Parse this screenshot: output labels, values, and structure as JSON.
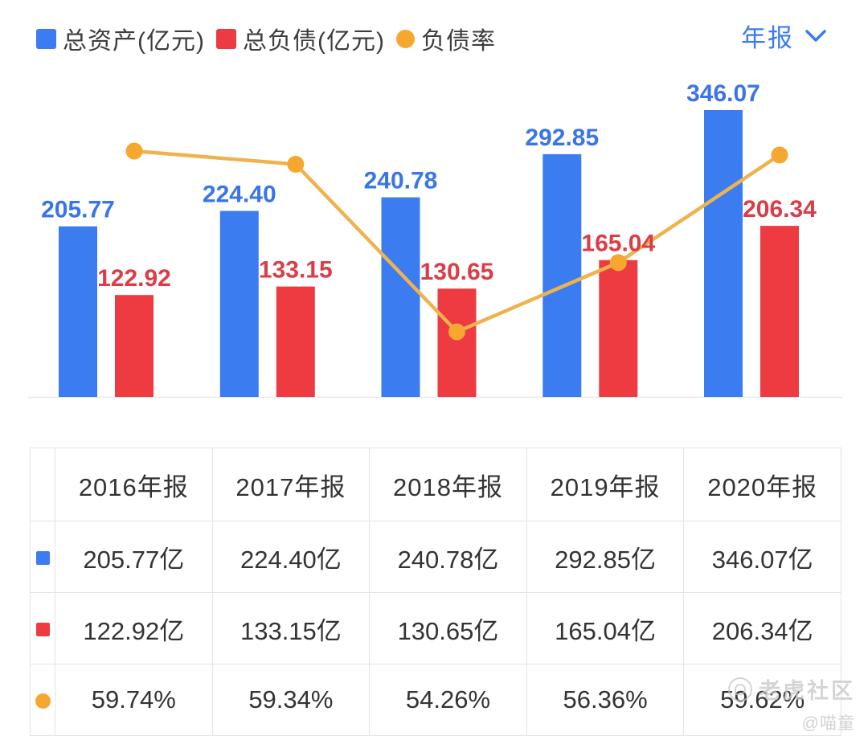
{
  "colors": {
    "assets_blue": "#3b7cf0",
    "liabilities_red": "#ee3b42",
    "ratio_orange": "#f6a72f",
    "ratio_line": "#eeb34e",
    "assets_label": "#3a75e8",
    "liabilities_label": "#dc3c45",
    "axis_line": "#e8e8e8"
  },
  "legend": {
    "items": [
      {
        "key": "assets",
        "label": "总资产(亿元)",
        "shape": "square",
        "color": "#3b7cf0"
      },
      {
        "key": "liabilities",
        "label": "总负债(亿元)",
        "shape": "square",
        "color": "#ee3b42"
      },
      {
        "key": "debt-ratio",
        "label": "负债率",
        "shape": "circle",
        "color": "#f6a72f"
      }
    ]
  },
  "period_selector": {
    "label": "年报"
  },
  "chart_data": {
    "type": "bar+line",
    "categories": [
      "2016年报",
      "2017年报",
      "2018年报",
      "2019年报",
      "2020年报"
    ],
    "category_years": [
      "2016",
      "2017",
      "2018",
      "2019",
      "2020"
    ],
    "series": [
      {
        "name": "总资产(亿元)",
        "key": "assets",
        "type": "bar",
        "unit": "亿元",
        "color": "#3b7cf0",
        "label_color": "#3a75e8",
        "values": [
          205.77,
          224.4,
          240.78,
          292.85,
          346.07
        ],
        "labels": [
          "205.77",
          "224.40",
          "240.78",
          "292.85",
          "346.07"
        ]
      },
      {
        "name": "总负债(亿元)",
        "key": "liabilities",
        "type": "bar",
        "unit": "亿元",
        "color": "#ee3b42",
        "label_color": "#dc3c45",
        "values": [
          122.92,
          133.15,
          130.65,
          165.04,
          206.34
        ],
        "labels": [
          "122.92",
          "133.15",
          "130.65",
          "165.04",
          "206.34"
        ]
      },
      {
        "name": "负债率",
        "key": "debt-ratio",
        "type": "line",
        "unit": "%",
        "color": "#f6a72f",
        "line_color": "#eeb34e",
        "values": [
          59.74,
          59.34,
          54.26,
          56.36,
          59.62
        ],
        "labels": [
          "59.74%",
          "59.34%",
          "54.26%",
          "56.36%",
          "59.62%"
        ]
      }
    ],
    "value_axis_visible": false,
    "grid": false,
    "legend_position": "top-left"
  },
  "table": {
    "headers": [
      "2016年报",
      "2017年报",
      "2018年报",
      "2019年报",
      "2020年报"
    ],
    "rows": [
      {
        "key": "assets",
        "shape": "square",
        "color": "#3b7cf0",
        "cells": [
          "205.77亿",
          "224.40亿",
          "240.78亿",
          "292.85亿",
          "346.07亿"
        ]
      },
      {
        "key": "liabilities",
        "shape": "square",
        "color": "#ee3b42",
        "cells": [
          "122.92亿",
          "133.15亿",
          "130.65亿",
          "165.04亿",
          "206.34亿"
        ]
      },
      {
        "key": "debt-ratio",
        "shape": "circle",
        "color": "#f6a72f",
        "cells": [
          "59.74%",
          "59.34%",
          "54.26%",
          "56.36%",
          "59.62%"
        ]
      }
    ]
  },
  "watermark": {
    "community": "老虎社区",
    "user": "@喵童"
  }
}
